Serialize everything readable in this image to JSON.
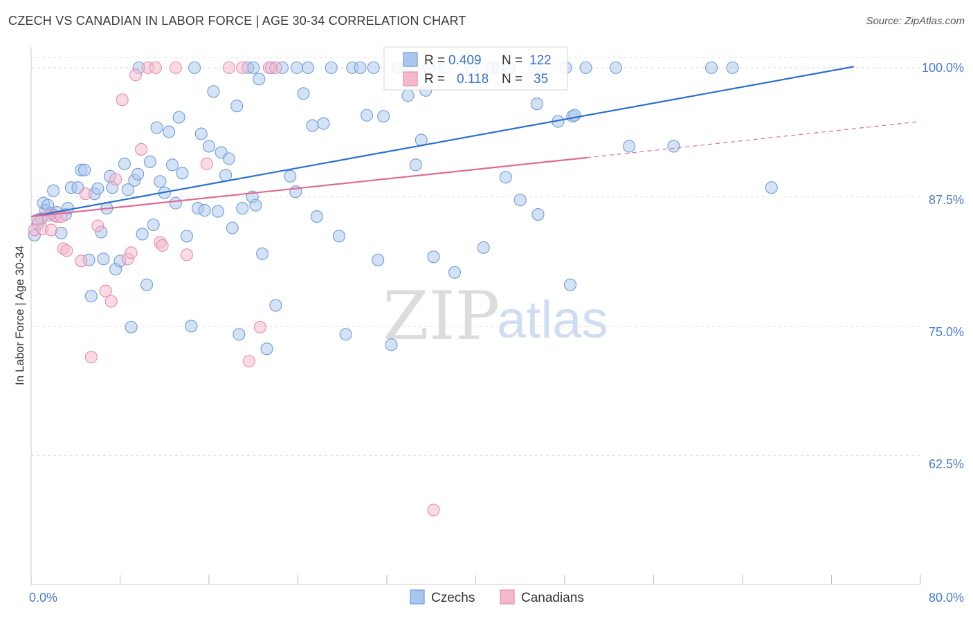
{
  "title": "CZECH VS CANADIAN IN LABOR FORCE | AGE 30-34 CORRELATION CHART",
  "source": "Source: ZipAtlas.com",
  "watermark": {
    "zip": "ZIP",
    "atlas": "atlas"
  },
  "colors": {
    "czech_fill": "#a9c6ee",
    "czech_stroke": "#6f9bd8",
    "czech_line": "#2a6fd0",
    "canadian_fill": "#f5b8cb",
    "canadian_stroke": "#e98ca9",
    "canadian_line": "#e06a94",
    "axis_text": "#4a7bd0",
    "grid": "#dddddd"
  },
  "legend_box": {
    "czech": {
      "r_label": "R =",
      "r_value": "0.409",
      "n_label": "N =",
      "n_value": "122"
    },
    "canadian": {
      "r_label": "R =",
      "r_value": "0.118",
      "n_label": "N =",
      "n_value": "35"
    }
  },
  "chart_data": {
    "type": "scatter",
    "title": "CZECH VS CANADIAN IN LABOR FORCE | AGE 30-34 CORRELATION CHART",
    "xlabel": "",
    "ylabel": "In Labor Force | Age 30-34",
    "xlim": [
      0,
      80
    ],
    "ylim": [
      50,
      102
    ],
    "x_tick_labels": [
      "0.0%",
      "80.0%"
    ],
    "y_ticks": [
      62.5,
      75.0,
      87.5,
      100.0
    ],
    "y_tick_labels": [
      "62.5%",
      "75.0%",
      "87.5%",
      "100.0%"
    ],
    "legend": [
      "Czechs",
      "Canadians"
    ],
    "series": [
      {
        "name": "Czechs",
        "trend": {
          "x": [
            0,
            74
          ],
          "y": [
            85.6,
            100.1
          ]
        },
        "points": [
          [
            0.3,
            83.8
          ],
          [
            0.6,
            84.9
          ],
          [
            0.9,
            85.4
          ],
          [
            1.1,
            86.9
          ],
          [
            1.3,
            86.2
          ],
          [
            1.5,
            86.7
          ],
          [
            1.8,
            85.9
          ],
          [
            2.1,
            85.7
          ],
          [
            2.3,
            86.0
          ],
          [
            2.0,
            88.1
          ],
          [
            2.7,
            84.0
          ],
          [
            3.1,
            85.8
          ],
          [
            3.3,
            86.4
          ],
          [
            3.6,
            88.4
          ],
          [
            4.2,
            88.4
          ],
          [
            4.5,
            90.1
          ],
          [
            4.8,
            90.1
          ],
          [
            5.2,
            81.4
          ],
          [
            5.4,
            77.9
          ],
          [
            5.7,
            87.8
          ],
          [
            6.0,
            88.3
          ],
          [
            6.3,
            84.1
          ],
          [
            6.5,
            81.5
          ],
          [
            6.8,
            86.4
          ],
          [
            7.1,
            89.5
          ],
          [
            7.3,
            88.4
          ],
          [
            7.6,
            80.5
          ],
          [
            8.0,
            81.3
          ],
          [
            8.4,
            90.7
          ],
          [
            8.7,
            88.2
          ],
          [
            9.0,
            74.9
          ],
          [
            9.3,
            89.1
          ],
          [
            9.6,
            89.7
          ],
          [
            10.0,
            83.9
          ],
          [
            10.4,
            79.0
          ],
          [
            10.7,
            90.9
          ],
          [
            11.0,
            84.8
          ],
          [
            11.3,
            94.2
          ],
          [
            11.6,
            89.0
          ],
          [
            12.0,
            87.9
          ],
          [
            12.4,
            93.8
          ],
          [
            12.7,
            90.6
          ],
          [
            13.0,
            86.9
          ],
          [
            13.3,
            95.2
          ],
          [
            13.6,
            89.8
          ],
          [
            14.0,
            83.7
          ],
          [
            14.4,
            75.0
          ],
          [
            14.7,
            100.0
          ],
          [
            15.0,
            86.4
          ],
          [
            15.3,
            93.6
          ],
          [
            15.6,
            86.2
          ],
          [
            16.0,
            92.4
          ],
          [
            16.4,
            97.7
          ],
          [
            16.8,
            86.1
          ],
          [
            17.1,
            91.8
          ],
          [
            17.5,
            89.6
          ],
          [
            17.8,
            91.2
          ],
          [
            18.1,
            84.5
          ],
          [
            18.5,
            96.3
          ],
          [
            18.7,
            74.2
          ],
          [
            19.0,
            86.4
          ],
          [
            19.5,
            100.0
          ],
          [
            19.9,
            87.5
          ],
          [
            20.2,
            86.7
          ],
          [
            20.5,
            98.9
          ],
          [
            20.8,
            82.0
          ],
          [
            21.2,
            72.8
          ],
          [
            21.6,
            100.0
          ],
          [
            22.0,
            77.0
          ],
          [
            22.6,
            100.0
          ],
          [
            23.3,
            89.5
          ],
          [
            23.8,
            88.0
          ],
          [
            24.5,
            97.5
          ],
          [
            24.9,
            100.0
          ],
          [
            25.3,
            94.4
          ],
          [
            25.7,
            85.6
          ],
          [
            26.3,
            94.6
          ],
          [
            27.0,
            100.0
          ],
          [
            27.7,
            83.7
          ],
          [
            28.3,
            74.2
          ],
          [
            28.9,
            100.0
          ],
          [
            29.6,
            100.0
          ],
          [
            30.2,
            95.4
          ],
          [
            30.8,
            100.0
          ],
          [
            31.2,
            81.4
          ],
          [
            31.7,
            95.3
          ],
          [
            32.4,
            73.2
          ],
          [
            33.0,
            100.0
          ],
          [
            33.8,
            100.0
          ],
          [
            33.9,
            97.3
          ],
          [
            34.6,
            90.6
          ],
          [
            35.1,
            93.0
          ],
          [
            35.8,
            100.0
          ],
          [
            36.2,
            81.7
          ],
          [
            37.2,
            100.0
          ],
          [
            38.1,
            80.2
          ],
          [
            39.6,
            100.0
          ],
          [
            40.7,
            82.6
          ],
          [
            42.0,
            100.0
          ],
          [
            42.7,
            89.4
          ],
          [
            44.0,
            87.2
          ],
          [
            45.3,
            100.0
          ],
          [
            45.6,
            85.8
          ],
          [
            47.4,
            94.8
          ],
          [
            48.1,
            100.0
          ],
          [
            48.5,
            79.0
          ],
          [
            48.7,
            95.3
          ],
          [
            48.9,
            95.4
          ],
          [
            49.9,
            100.0
          ],
          [
            52.6,
            100.0
          ],
          [
            53.8,
            92.4
          ],
          [
            57.8,
            92.4
          ],
          [
            61.2,
            100.0
          ],
          [
            63.1,
            100.0
          ],
          [
            66.6,
            88.4
          ],
          [
            43.0,
            100.0
          ],
          [
            41.5,
            100.0
          ],
          [
            23.9,
            100.0
          ],
          [
            9.7,
            100.0
          ],
          [
            35.5,
            97.8
          ],
          [
            45.5,
            96.5
          ],
          [
            20.0,
            100.0
          ]
        ]
      },
      {
        "name": "Canadians",
        "trend": {
          "x": [
            0,
            50
          ],
          "y": [
            85.6,
            91.3
          ]
        },
        "trend_extension": {
          "x": [
            50,
            80
          ],
          "y": [
            91.3,
            94.8
          ]
        },
        "points": [
          [
            0.3,
            84.3
          ],
          [
            0.6,
            85.3
          ],
          [
            1.0,
            84.4
          ],
          [
            1.5,
            85.7
          ],
          [
            1.8,
            84.3
          ],
          [
            2.3,
            85.6
          ],
          [
            2.7,
            85.6
          ],
          [
            2.9,
            82.5
          ],
          [
            3.2,
            82.3
          ],
          [
            4.5,
            81.3
          ],
          [
            4.9,
            87.8
          ],
          [
            5.4,
            72.0
          ],
          [
            6.0,
            84.7
          ],
          [
            6.7,
            78.4
          ],
          [
            7.2,
            77.4
          ],
          [
            7.6,
            89.2
          ],
          [
            8.2,
            96.9
          ],
          [
            8.7,
            81.5
          ],
          [
            9.0,
            82.1
          ],
          [
            9.4,
            99.3
          ],
          [
            9.9,
            92.1
          ],
          [
            10.5,
            100.0
          ],
          [
            11.2,
            100.0
          ],
          [
            11.6,
            83.1
          ],
          [
            11.8,
            82.8
          ],
          [
            13.0,
            100.0
          ],
          [
            14.0,
            81.9
          ],
          [
            15.8,
            90.7
          ],
          [
            17.8,
            100.0
          ],
          [
            19.0,
            100.0
          ],
          [
            19.6,
            71.6
          ],
          [
            20.6,
            74.9
          ],
          [
            21.4,
            100.0
          ],
          [
            36.2,
            57.2
          ],
          [
            22.0,
            100.0
          ]
        ]
      }
    ]
  }
}
